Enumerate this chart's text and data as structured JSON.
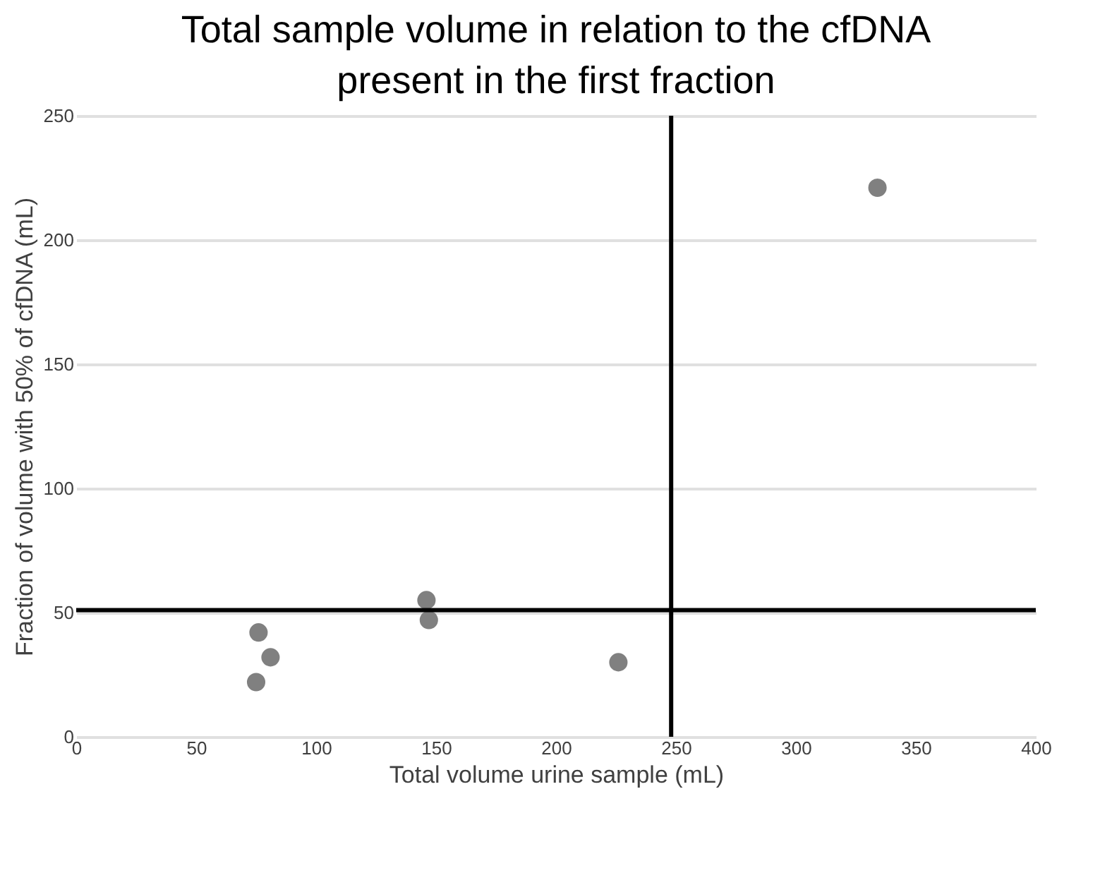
{
  "chart_data": {
    "type": "scatter",
    "title": "Total sample volume in relation to the cfDNA present in the first fraction",
    "xlabel": "Total volume urine sample (mL)",
    "ylabel": "Fraction of volume with 50% of cfDNA  (mL)",
    "series": [
      {
        "color": "#808080",
        "x": [
          76,
          81,
          75,
          146,
          147,
          226,
          334
        ],
        "values": [
          42,
          32,
          22,
          55,
          47,
          30,
          221
        ]
      }
    ],
    "xlim": [
      0,
      400
    ],
    "xticks": [
      0,
      50,
      100,
      150,
      200,
      250,
      300,
      350,
      400
    ],
    "ylim": [
      0,
      250
    ],
    "yticks": [
      0,
      50,
      100,
      150,
      200,
      250
    ],
    "grid": "y",
    "marker": "circle",
    "ref_lines": [
      {
        "axis": "x",
        "value": 248,
        "color": "#000000"
      },
      {
        "axis": "y",
        "value": 51,
        "color": "#000000"
      }
    ]
  }
}
